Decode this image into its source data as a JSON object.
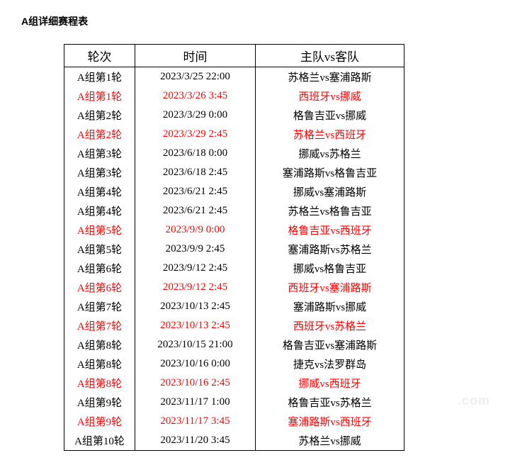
{
  "title": "A组详细赛程表",
  "headers": [
    "轮次",
    "时间",
    "主队vs客队"
  ],
  "watermark": ".com",
  "rows": [
    {
      "round": "A组第1轮",
      "time": "2023/3/25 22:00",
      "match": "苏格兰vs塞浦路斯",
      "hl": false
    },
    {
      "round": "A组第1轮",
      "time": "2023/3/26 3:45",
      "match": "西班牙vs挪威",
      "hl": true
    },
    {
      "round": "A组第2轮",
      "time": "2023/3/29 0:00",
      "match": "格鲁吉亚vs挪威",
      "hl": false
    },
    {
      "round": "A组第2轮",
      "time": "2023/3/29 2:45",
      "match": "苏格兰vs西班牙",
      "hl": true
    },
    {
      "round": "A组第3轮",
      "time": "2023/6/18 0:00",
      "match": "挪威vs苏格兰",
      "hl": false
    },
    {
      "round": "A组第3轮",
      "time": "2023/6/18 2:45",
      "match": "塞浦路斯vs格鲁吉亚",
      "hl": false
    },
    {
      "round": "A组第4轮",
      "time": "2023/6/21 2:45",
      "match": "挪威vs塞浦路斯",
      "hl": false
    },
    {
      "round": "A组第4轮",
      "time": "2023/6/21 2:45",
      "match": "苏格兰vs格鲁吉亚",
      "hl": false
    },
    {
      "round": "A组第5轮",
      "time": "2023/9/9 0:00",
      "match": "格鲁吉亚vs西班牙",
      "hl": true
    },
    {
      "round": "A组第5轮",
      "time": "2023/9/9 2:45",
      "match": "塞浦路斯vs苏格兰",
      "hl": false
    },
    {
      "round": "A组第6轮",
      "time": "2023/9/12 2:45",
      "match": "挪威vs格鲁吉亚",
      "hl": false
    },
    {
      "round": "A组第6轮",
      "time": "2023/9/12 2:45",
      "match": "西班牙vs塞浦路斯",
      "hl": true
    },
    {
      "round": "A组第7轮",
      "time": "2023/10/13 2:45",
      "match": "塞浦路斯vs挪威",
      "hl": false
    },
    {
      "round": "A组第7轮",
      "time": "2023/10/13 2:45",
      "match": "西班牙vs苏格兰",
      "hl": true
    },
    {
      "round": "A组第8轮",
      "time": "2023/10/15 21:00",
      "match": "格鲁吉亚vs塞浦路斯",
      "hl": false
    },
    {
      "round": "A组第8轮",
      "time": "2023/10/16 0:00",
      "match": "捷克vs法罗群岛",
      "hl": false
    },
    {
      "round": "A组第8轮",
      "time": "2023/10/16 2:45",
      "match": "挪威vs西班牙",
      "hl": true
    },
    {
      "round": "A组第9轮",
      "time": "2023/11/17 1:00",
      "match": "格鲁吉亚vs苏格兰",
      "hl": false
    },
    {
      "round": "A组第9轮",
      "time": "2023/11/17 3:45",
      "match": "塞浦路斯vs西班牙",
      "hl": true
    },
    {
      "round": "A组第10轮",
      "time": "2023/11/20 3:45",
      "match": "苏格兰vs挪威",
      "hl": false
    }
  ]
}
